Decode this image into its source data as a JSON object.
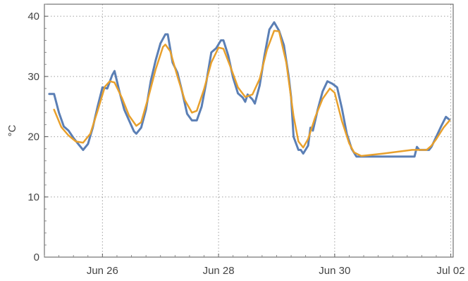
{
  "chart_data": {
    "type": "line",
    "title": "",
    "xlabel": "",
    "ylabel": "°C",
    "ylim": [
      0,
      42
    ],
    "xlim": [
      "2024-06-25T00:00",
      "2024-07-02T01:00"
    ],
    "grid": true,
    "x_ticks": [
      {
        "x": "2024-06-26T00:00",
        "label": "Jun 26"
      },
      {
        "x": "2024-06-28T00:00",
        "label": "Jun 28"
      },
      {
        "x": "2024-06-30T00:00",
        "label": "Jun 30"
      },
      {
        "x": "2024-07-02T00:00",
        "label": "Jul 02"
      }
    ],
    "y_ticks": [
      {
        "y": 0,
        "label": "0"
      },
      {
        "y": 10,
        "label": "10"
      },
      {
        "y": 20,
        "label": "20"
      },
      {
        "y": 30,
        "label": "30"
      },
      {
        "y": 40,
        "label": "40"
      }
    ],
    "series": [
      {
        "color": "#5b7fb5",
        "points": [
          [
            "2024-06-25T02:00",
            27.1
          ],
          [
            "2024-06-25T04:00",
            27.1
          ],
          [
            "2024-06-25T06:00",
            24.0
          ],
          [
            "2024-06-25T08:00",
            21.7
          ],
          [
            "2024-06-25T10:00",
            21.0
          ],
          [
            "2024-06-25T12:00",
            19.8
          ],
          [
            "2024-06-25T14:00",
            18.8
          ],
          [
            "2024-06-25T16:00",
            17.8
          ],
          [
            "2024-06-25T18:00",
            18.8
          ],
          [
            "2024-06-25T20:00",
            21.5
          ],
          [
            "2024-06-25T22:00",
            25.0
          ],
          [
            "2024-06-26T00:00",
            28.2
          ],
          [
            "2024-06-26T02:00",
            28.0
          ],
          [
            "2024-06-26T04:00",
            30.2
          ],
          [
            "2024-06-26T05:00",
            30.9
          ],
          [
            "2024-06-26T07:00",
            27.5
          ],
          [
            "2024-06-26T09:00",
            24.5
          ],
          [
            "2024-06-26T11:00",
            22.7
          ],
          [
            "2024-06-26T13:00",
            20.9
          ],
          [
            "2024-06-26T14:00",
            20.5
          ],
          [
            "2024-06-26T16:00",
            21.5
          ],
          [
            "2024-06-26T18:00",
            24.5
          ],
          [
            "2024-06-26T20:00",
            29.3
          ],
          [
            "2024-06-26T22:00",
            32.7
          ],
          [
            "2024-06-27T00:00",
            35.5
          ],
          [
            "2024-06-27T02:00",
            37.0
          ],
          [
            "2024-06-27T03:00",
            37.0
          ],
          [
            "2024-06-27T05:00",
            32.3
          ],
          [
            "2024-06-27T07:00",
            30.6
          ],
          [
            "2024-06-27T09:00",
            27.4
          ],
          [
            "2024-06-27T11:00",
            23.8
          ],
          [
            "2024-06-27T13:00",
            22.7
          ],
          [
            "2024-06-27T15:00",
            22.7
          ],
          [
            "2024-06-27T17:00",
            25.0
          ],
          [
            "2024-06-27T19:00",
            29.2
          ],
          [
            "2024-06-27T21:00",
            34.0
          ],
          [
            "2024-06-27T23:00",
            34.7
          ],
          [
            "2024-06-28T01:00",
            36.0
          ],
          [
            "2024-06-28T02:00",
            36.0
          ],
          [
            "2024-06-28T04:00",
            33.5
          ],
          [
            "2024-06-28T06:00",
            29.8
          ],
          [
            "2024-06-28T08:00",
            27.2
          ],
          [
            "2024-06-28T10:00",
            26.5
          ],
          [
            "2024-06-28T11:00",
            25.8
          ],
          [
            "2024-06-28T12:00",
            27.0
          ],
          [
            "2024-06-28T14:00",
            26.2
          ],
          [
            "2024-06-28T15:00",
            25.5
          ],
          [
            "2024-06-28T17:00",
            28.5
          ],
          [
            "2024-06-28T19:00",
            33.5
          ],
          [
            "2024-06-28T21:00",
            37.8
          ],
          [
            "2024-06-28T23:00",
            39.0
          ],
          [
            "2024-06-29T01:00",
            37.6
          ],
          [
            "2024-06-29T03:00",
            35.2
          ],
          [
            "2024-06-29T05:00",
            30.0
          ],
          [
            "2024-06-29T06:00",
            26.5
          ],
          [
            "2024-06-29T07:00",
            20.0
          ],
          [
            "2024-06-29T09:00",
            17.8
          ],
          [
            "2024-06-29T10:00",
            17.8
          ],
          [
            "2024-06-29T11:00",
            17.2
          ],
          [
            "2024-06-29T13:00",
            18.5
          ],
          [
            "2024-06-29T14:00",
            21.5
          ],
          [
            "2024-06-29T15:00",
            21.0
          ],
          [
            "2024-06-29T17:00",
            24.5
          ],
          [
            "2024-06-29T19:00",
            27.5
          ],
          [
            "2024-06-29T21:00",
            29.2
          ],
          [
            "2024-06-29T23:00",
            28.8
          ],
          [
            "2024-06-30T01:00",
            28.2
          ],
          [
            "2024-06-30T03:00",
            24.7
          ],
          [
            "2024-06-30T05:00",
            20.5
          ],
          [
            "2024-06-30T07:00",
            18.0
          ],
          [
            "2024-06-30T09:00",
            16.7
          ],
          [
            "2024-06-30T11:00",
            16.7
          ],
          [
            "2024-06-30T15:00",
            16.7
          ],
          [
            "2024-06-30T22:00",
            16.7
          ],
          [
            "2024-07-01T04:00",
            16.7
          ],
          [
            "2024-07-01T09:00",
            16.7
          ],
          [
            "2024-07-01T10:00",
            18.3
          ],
          [
            "2024-07-01T11:00",
            17.8
          ],
          [
            "2024-07-01T14:00",
            17.8
          ],
          [
            "2024-07-01T15:00",
            17.8
          ],
          [
            "2024-07-01T16:00",
            18.3
          ],
          [
            "2024-07-01T18:00",
            20.0
          ],
          [
            "2024-07-01T20:00",
            21.7
          ],
          [
            "2024-07-01T22:00",
            23.3
          ],
          [
            "2024-07-01T23:30",
            22.8
          ]
        ]
      },
      {
        "color": "#e8a02c",
        "points": [
          [
            "2024-06-25T04:00",
            24.5
          ],
          [
            "2024-06-25T07:00",
            21.6
          ],
          [
            "2024-06-25T10:00",
            20.2
          ],
          [
            "2024-06-25T13:00",
            19.2
          ],
          [
            "2024-06-25T16:00",
            19.0
          ],
          [
            "2024-06-25T19:00",
            20.5
          ],
          [
            "2024-06-25T22:00",
            24.3
          ],
          [
            "2024-06-26T01:00",
            28.3
          ],
          [
            "2024-06-26T03:00",
            29.2
          ],
          [
            "2024-06-26T05:00",
            29.0
          ],
          [
            "2024-06-26T08:00",
            26.5
          ],
          [
            "2024-06-26T11:00",
            23.5
          ],
          [
            "2024-06-26T14:00",
            21.8
          ],
          [
            "2024-06-26T16:00",
            22.4
          ],
          [
            "2024-06-26T19:00",
            26.6
          ],
          [
            "2024-06-26T22:00",
            31.2
          ],
          [
            "2024-06-27T01:00",
            34.9
          ],
          [
            "2024-06-27T02:00",
            35.3
          ],
          [
            "2024-06-27T04:00",
            34.2
          ],
          [
            "2024-06-27T07:00",
            30.0
          ],
          [
            "2024-06-27T10:00",
            26.1
          ],
          [
            "2024-06-27T13:00",
            24.0
          ],
          [
            "2024-06-27T15:00",
            24.3
          ],
          [
            "2024-06-27T18:00",
            27.9
          ],
          [
            "2024-06-27T21:00",
            32.3
          ],
          [
            "2024-06-28T00:00",
            34.8
          ],
          [
            "2024-06-28T02:00",
            34.6
          ],
          [
            "2024-06-28T05:00",
            31.5
          ],
          [
            "2024-06-28T08:00",
            28.2
          ],
          [
            "2024-06-28T11:00",
            26.6
          ],
          [
            "2024-06-28T14:00",
            27.0
          ],
          [
            "2024-06-28T17:00",
            29.6
          ],
          [
            "2024-06-28T20:00",
            34.4
          ],
          [
            "2024-06-28T23:00",
            37.6
          ],
          [
            "2024-06-29T01:00",
            37.5
          ],
          [
            "2024-06-29T04:00",
            32.3
          ],
          [
            "2024-06-29T07:00",
            23.4
          ],
          [
            "2024-06-29T09:00",
            19.2
          ],
          [
            "2024-06-29T11:00",
            18.2
          ],
          [
            "2024-06-29T13:00",
            19.6
          ],
          [
            "2024-06-29T16:00",
            23.3
          ],
          [
            "2024-06-29T19:00",
            26.3
          ],
          [
            "2024-06-29T22:00",
            28.0
          ],
          [
            "2024-06-30T00:00",
            27.3
          ],
          [
            "2024-06-30T03:00",
            22.6
          ],
          [
            "2024-06-30T06:00",
            18.9
          ],
          [
            "2024-06-30T08:00",
            17.4
          ],
          [
            "2024-06-30T11:00",
            16.8
          ],
          [
            "2024-06-30T20:00",
            17.2
          ],
          [
            "2024-07-01T08:00",
            17.8
          ],
          [
            "2024-07-01T14:00",
            17.8
          ],
          [
            "2024-07-01T16:00",
            18.5
          ],
          [
            "2024-07-01T18:00",
            19.6
          ],
          [
            "2024-07-01T21:00",
            21.5
          ],
          [
            "2024-07-01T23:30",
            22.7
          ]
        ]
      }
    ]
  }
}
